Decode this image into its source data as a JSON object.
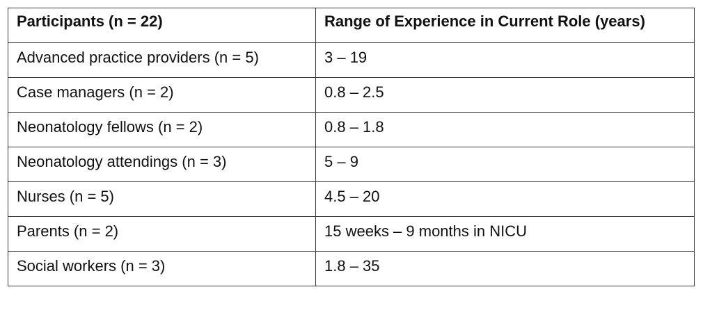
{
  "table": {
    "headers": [
      "Participants (n = 22)",
      "Range of Experience in Current Role (years)"
    ],
    "rows": [
      [
        "Advanced practice providers (n = 5)",
        "3 – 19"
      ],
      [
        "Case managers (n = 2)",
        "0.8 – 2.5"
      ],
      [
        "Neonatology fellows (n = 2)",
        "0.8 – 1.8"
      ],
      [
        "Neonatology attendings (n = 3)",
        "5 – 9"
      ],
      [
        "Nurses (n = 5)",
        "4.5 – 20"
      ],
      [
        "Parents (n = 2)",
        "15 weeks – 9 months in NICU"
      ],
      [
        "Social workers (n = 3)",
        "1.8 – 35"
      ]
    ]
  }
}
